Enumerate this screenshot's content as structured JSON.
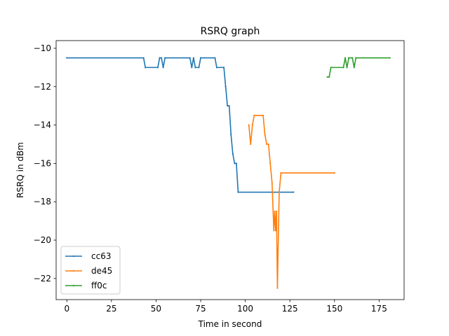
{
  "chart_data": {
    "type": "line",
    "title": "RSRQ graph",
    "xlabel": "Time in second",
    "ylabel": "RSRQ in dBm",
    "xlim": [
      -6,
      189
    ],
    "ylim": [
      -23.1,
      -9.6
    ],
    "xticks": [
      0,
      25,
      50,
      75,
      100,
      125,
      150,
      175
    ],
    "xtick_labels": [
      "0",
      "25",
      "50",
      "75",
      "100",
      "125",
      "150",
      "175"
    ],
    "yticks": [
      -10,
      -12,
      -14,
      -16,
      -18,
      -20,
      -22
    ],
    "ytick_labels": [
      "−10",
      "−12",
      "−14",
      "−16",
      "−18",
      "−20",
      "−22"
    ],
    "grid": false,
    "legend_position": "lower left",
    "series": [
      {
        "name": "cc63",
        "color": "#1f77b4",
        "points": [
          [
            0,
            -10.5
          ],
          [
            43,
            -10.5
          ],
          [
            44,
            -11
          ],
          [
            51,
            -11
          ],
          [
            52,
            -10.5
          ],
          [
            53,
            -10.5
          ],
          [
            54,
            -11
          ],
          [
            55,
            -10.5
          ],
          [
            69,
            -10.5
          ],
          [
            70,
            -11
          ],
          [
            71,
            -10.5
          ],
          [
            72,
            -11
          ],
          [
            74,
            -11
          ],
          [
            75,
            -10.5
          ],
          [
            83,
            -10.5
          ],
          [
            84,
            -11
          ],
          [
            88,
            -11
          ],
          [
            89,
            -12
          ],
          [
            90,
            -13
          ],
          [
            91,
            -13
          ],
          [
            92,
            -14.5
          ],
          [
            93,
            -15.5
          ],
          [
            94,
            -16
          ],
          [
            95,
            -16
          ],
          [
            96,
            -17.5
          ],
          [
            127,
            -17.5
          ]
        ]
      },
      {
        "name": "de45",
        "color": "#ff7f0e",
        "points": [
          [
            102,
            -14
          ],
          [
            103,
            -15
          ],
          [
            104,
            -14
          ],
          [
            105,
            -13.5
          ],
          [
            110,
            -13.5
          ],
          [
            111,
            -14.5
          ],
          [
            112,
            -15
          ],
          [
            113,
            -15
          ],
          [
            114,
            -16
          ],
          [
            115,
            -17
          ],
          [
            116,
            -19.5
          ],
          [
            116.5,
            -18.5
          ],
          [
            117,
            -19.5
          ],
          [
            117.5,
            -18.5
          ],
          [
            118,
            -22.5
          ],
          [
            119,
            -17.5
          ],
          [
            120,
            -16.5
          ],
          [
            150,
            -16.5
          ]
        ]
      },
      {
        "name": "ff0c",
        "color": "#2ca02c",
        "points": [
          [
            146,
            -11.5
          ],
          [
            147,
            -11.5
          ],
          [
            148,
            -11
          ],
          [
            155,
            -11
          ],
          [
            156,
            -10.5
          ],
          [
            157,
            -11
          ],
          [
            158,
            -10.5
          ],
          [
            160,
            -10.5
          ],
          [
            161,
            -11
          ],
          [
            162,
            -10.5
          ],
          [
            181,
            -10.5
          ]
        ]
      }
    ]
  }
}
